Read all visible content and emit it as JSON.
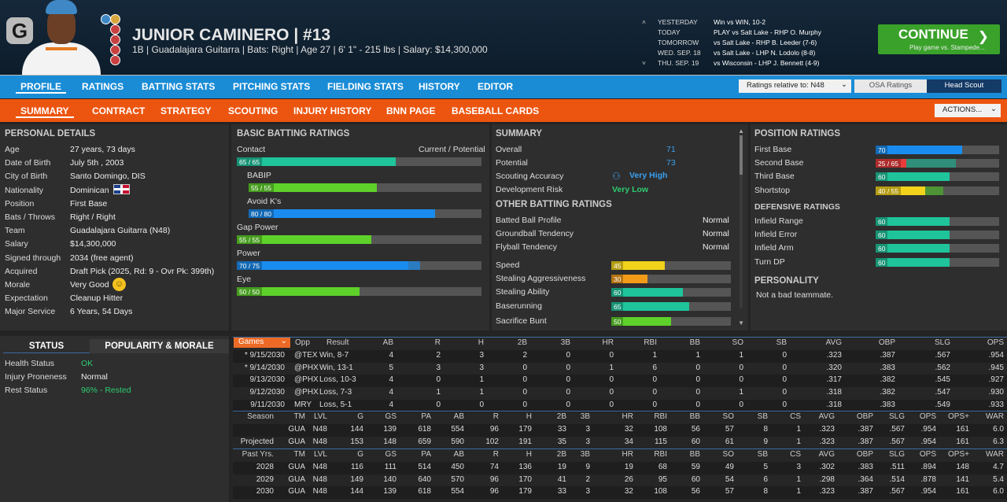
{
  "header": {
    "logo_letter": "G",
    "player_name": "JUNIOR CAMINERO  |  #13",
    "player_info": "1B | Guadalajara Guitarra  |  Bats: Right  |  Age 27  |  6' 1\" - 215 lbs  |  Salary: $14,300,000",
    "schedule": [
      {
        "day": "YESTERDAY",
        "event": "Win vs WIN, 10-2"
      },
      {
        "day": "TODAY",
        "event": "PLAY vs Salt Lake - RHP O. Murphy"
      },
      {
        "day": "TOMORROW",
        "event": "vs Salt Lake - RHP B. Leeder (7-6)"
      },
      {
        "day": "WED. SEP. 18",
        "event": "vs Salt Lake - LHP N. Lodolo (8-8)"
      },
      {
        "day": "THU. SEP. 19",
        "event": "vs Wisconsin - LHP J. Bennett (4-9)"
      }
    ],
    "continue_label": "CONTINUE",
    "continue_sub": "Play game vs. Stampede..."
  },
  "nav1": {
    "tabs": [
      "PROFILE",
      "RATINGS",
      "BATTING STATS",
      "PITCHING STATS",
      "FIELDING STATS",
      "HISTORY",
      "EDITOR"
    ],
    "ratings_relative": "Ratings relative to: N48",
    "osa": "OSA Ratings",
    "head_scout": "Head Scout"
  },
  "nav2": {
    "tabs": [
      "SUMMARY",
      "CONTRACT",
      "STRATEGY",
      "SCOUTING",
      "INJURY HISTORY",
      "BNN PAGE",
      "BASEBALL CARDS"
    ],
    "actions": "ACTIONS..."
  },
  "personal": {
    "title": "PERSONAL DETAILS",
    "rows": [
      {
        "label": "Age",
        "value": "27 years, 73 days"
      },
      {
        "label": "Date of Birth",
        "value": "July 5th , 2003"
      },
      {
        "label": "City of Birth",
        "value": "Santo Domingo, DIS"
      },
      {
        "label": "Nationality",
        "value": "Dominican"
      },
      {
        "label": "Position",
        "value": "First Base"
      },
      {
        "label": "Bats / Throws",
        "value": "Right / Right"
      },
      {
        "label": "Team",
        "value": "Guadalajara Guitarra (N48)"
      },
      {
        "label": "Salary",
        "value": "$14,300,000"
      },
      {
        "label": "Signed through",
        "value": "2034 (free agent)"
      },
      {
        "label": "Acquired",
        "value": "Draft Pick (2025, Rd: 9 - Ovr Pk: 399th)"
      },
      {
        "label": "Morale",
        "value": "Very Good"
      },
      {
        "label": "Expectation",
        "value": "Cleanup Hitter"
      },
      {
        "label": "Major Service",
        "value": "6 Years, 54 Days"
      }
    ]
  },
  "status": {
    "tab_status": "STATUS",
    "tab_popularity": "POPULARITY & MORALE",
    "rows": [
      {
        "label": "Health Status",
        "value": "OK",
        "color": "#2ecc71"
      },
      {
        "label": "Injury Proneness",
        "value": "Normal",
        "color": "#eeeeee"
      },
      {
        "label": "Rest Status",
        "value": "96% - Rested",
        "color": "#2ecc71"
      }
    ]
  },
  "batting": {
    "title": "BASIC BATTING RATINGS",
    "subtitle": "Current / Potential",
    "ratings": [
      {
        "label": "Contact",
        "text": "65 / 65",
        "current": 65,
        "potential": 65,
        "color": "#1fc49b"
      },
      {
        "label": "BABIP",
        "text": "55 / 55",
        "current": 55,
        "potential": 55,
        "color": "#5ed12a"
      },
      {
        "label": "Avoid K's",
        "text": "80 / 80",
        "current": 80,
        "potential": 80,
        "color": "#1a8cf0"
      },
      {
        "label": "Gap Power",
        "text": "55 / 55",
        "current": 55,
        "potential": 55,
        "color": "#5ed12a"
      },
      {
        "label": "Power",
        "text": "70 / 75",
        "current": 70,
        "potential": 75,
        "color": "#1a8cf0"
      },
      {
        "label": "Eye",
        "text": "50 / 50",
        "current": 50,
        "potential": 50,
        "color": "#5ed12a"
      }
    ]
  },
  "summary": {
    "title": "SUMMARY",
    "overall_label": "Overall",
    "overall": "71",
    "potential_label": "Potential",
    "potential": "73",
    "scouting_label": "Scouting Accuracy",
    "scouting": "Very High",
    "devrisk_label": "Development Risk",
    "devrisk": "Very Low",
    "other_title": "OTHER BATTING RATINGS",
    "other": [
      {
        "label": "Batted Ball Profile",
        "value": "Normal"
      },
      {
        "label": "Groundball Tendency",
        "value": "Normal"
      },
      {
        "label": "Flyball Tendency",
        "value": "Normal"
      }
    ],
    "bars": [
      {
        "label": "Speed",
        "value": 45,
        "text": "45",
        "color": "#f2d21b"
      },
      {
        "label": "Stealing Aggressiveness",
        "value": 30,
        "text": "30",
        "color": "#f29b18"
      },
      {
        "label": "Stealing Ability",
        "value": 60,
        "text": "60",
        "color": "#1fc49b"
      },
      {
        "label": "Baserunning",
        "value": 65,
        "text": "65",
        "color": "#1fc49b"
      },
      {
        "label": "Sacrifice Bunt",
        "value": 50,
        "text": "50",
        "color": "#5ed12a"
      }
    ]
  },
  "positions": {
    "title": "POSITION RATINGS",
    "rows": [
      {
        "label": "First Base",
        "text": "70",
        "current": 70,
        "potential": 70,
        "color": "#1a8cf0",
        "pcolor": "#1a8cf0"
      },
      {
        "label": "Second Base",
        "text": "25 / 65",
        "current": 25,
        "potential": 65,
        "color": "#e83b3b",
        "pcolor": "#1fa88a"
      },
      {
        "label": "Third Base",
        "text": "60",
        "current": 60,
        "potential": 60,
        "color": "#1fc49b",
        "pcolor": "#1fc49b"
      },
      {
        "label": "Shortstop",
        "text": "40 / 55",
        "current": 40,
        "potential": 55,
        "color": "#f2d21b",
        "pcolor": "#4caf2a"
      }
    ],
    "def_title": "DEFENSIVE RATINGS",
    "def": [
      {
        "label": "Infield Range",
        "value": 60,
        "text": "60",
        "color": "#1fc49b"
      },
      {
        "label": "Infield Error",
        "value": 60,
        "text": "60",
        "color": "#1fc49b"
      },
      {
        "label": "Infield Arm",
        "value": 60,
        "text": "60",
        "color": "#1fc49b"
      },
      {
        "label": "Turn DP",
        "value": 60,
        "text": "60",
        "color": "#1fc49b"
      }
    ],
    "personality_title": "PERSONALITY",
    "personality": "Not a bad teammate."
  },
  "games": {
    "dropdown": "Games",
    "headers": [
      "Opp",
      "Result",
      "AB",
      "R",
      "H",
      "2B",
      "3B",
      "HR",
      "RBI",
      "BB",
      "SO",
      "SB",
      "AVG",
      "OBP",
      "SLG",
      "OPS"
    ],
    "rows": [
      [
        "* 9/15/2030",
        "@TEX",
        "Win, 8-7",
        "4",
        "2",
        "3",
        "2",
        "0",
        "0",
        "1",
        "1",
        "1",
        "0",
        ".323",
        ".387",
        ".567",
        ".954"
      ],
      [
        "* 9/14/2030",
        "@PHX",
        "Win, 13-1",
        "5",
        "3",
        "3",
        "0",
        "0",
        "1",
        "6",
        "0",
        "0",
        "0",
        ".320",
        ".383",
        ".562",
        ".945"
      ],
      [
        "9/13/2030",
        "@PHX",
        "Loss, 10-3",
        "4",
        "0",
        "1",
        "0",
        "0",
        "0",
        "0",
        "0",
        "0",
        "0",
        ".317",
        ".382",
        ".545",
        ".927"
      ],
      [
        "9/12/2030",
        "@PHX",
        "Loss, 7-3",
        "4",
        "1",
        "1",
        "0",
        "0",
        "0",
        "0",
        "0",
        "1",
        "0",
        ".318",
        ".382",
        ".547",
        ".930"
      ],
      [
        "9/11/2030",
        "MRY",
        "Loss, 5-1",
        "4",
        "0",
        "0",
        "0",
        "0",
        "0",
        "0",
        "0",
        "0",
        "0",
        ".318",
        ".383",
        ".549",
        ".933"
      ]
    ]
  },
  "season": {
    "headers": [
      "Season",
      "TM",
      "LVL",
      "G",
      "GS",
      "PA",
      "AB",
      "R",
      "H",
      "2B",
      "3B",
      "HR",
      "RBI",
      "BB",
      "SO",
      "SB",
      "CS",
      "AVG",
      "OBP",
      "SLG",
      "OPS",
      "OPS+",
      "WAR"
    ],
    "rows": [
      [
        "",
        "GUA",
        "N48",
        "144",
        "139",
        "618",
        "554",
        "96",
        "179",
        "33",
        "3",
        "32",
        "108",
        "56",
        "57",
        "8",
        "1",
        ".323",
        ".387",
        ".567",
        ".954",
        "161",
        "6.0"
      ],
      [
        "Projected",
        "GUA",
        "N48",
        "153",
        "148",
        "659",
        "590",
        "102",
        "191",
        "35",
        "3",
        "34",
        "115",
        "60",
        "61",
        "9",
        "1",
        ".323",
        ".387",
        ".567",
        ".954",
        "161",
        "6.3"
      ]
    ]
  },
  "past": {
    "headers": [
      "Past Yrs.",
      "TM",
      "LVL",
      "G",
      "GS",
      "PA",
      "AB",
      "R",
      "H",
      "2B",
      "3B",
      "HR",
      "RBI",
      "BB",
      "SO",
      "SB",
      "CS",
      "AVG",
      "OBP",
      "SLG",
      "OPS",
      "OPS+",
      "WAR"
    ],
    "rows": [
      [
        "2028",
        "GUA",
        "N48",
        "116",
        "111",
        "514",
        "450",
        "74",
        "136",
        "19",
        "9",
        "19",
        "68",
        "59",
        "49",
        "5",
        "3",
        ".302",
        ".383",
        ".511",
        ".894",
        "148",
        "4.7"
      ],
      [
        "2029",
        "GUA",
        "N48",
        "149",
        "140",
        "640",
        "570",
        "96",
        "170",
        "41",
        "2",
        "26",
        "95",
        "60",
        "54",
        "6",
        "1",
        ".298",
        ".364",
        ".514",
        ".878",
        "141",
        "5.4"
      ],
      [
        "2030",
        "GUA",
        "N48",
        "144",
        "139",
        "618",
        "554",
        "96",
        "179",
        "33",
        "3",
        "32",
        "108",
        "56",
        "57",
        "8",
        "1",
        ".323",
        ".387",
        ".567",
        ".954",
        "161",
        "6.0"
      ]
    ]
  }
}
